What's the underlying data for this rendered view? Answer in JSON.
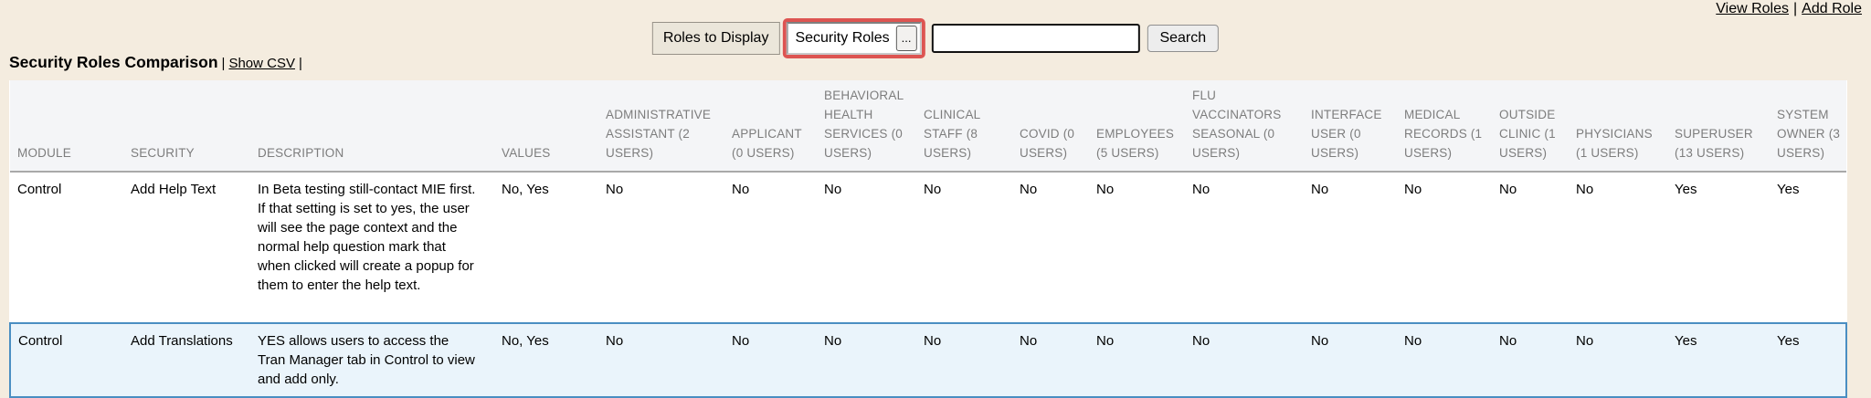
{
  "top_links": {
    "view_roles": "View Roles",
    "separator": "|",
    "add_role": "Add Role"
  },
  "controls": {
    "roles_to_display_label": "Roles to Display",
    "roles_picker_value": "Security Roles",
    "roles_picker_button_label": "...",
    "search_value": "",
    "search_button_label": "Search"
  },
  "title_line": {
    "title": "Security Roles Comparison",
    "sep1": "|",
    "show_csv_link": "Show CSV",
    "sep2": "|"
  },
  "colors": {
    "page_background": "#f4ecdf",
    "highlight_border_red": "#dd5451",
    "table_header_background": "#f4f5f7",
    "table_header_text": "#7d7d7d",
    "highlighted_row_background": "#eaf4fb",
    "highlighted_row_border_blue": "#4a8ec2"
  },
  "table": {
    "columns": [
      {
        "id": "module",
        "label": "MODULE"
      },
      {
        "id": "security",
        "label": "SECURITY"
      },
      {
        "id": "description",
        "label": "DESCRIPTION"
      },
      {
        "id": "values",
        "label": "VALUES"
      },
      {
        "id": "administrative-assistant",
        "label": "ADMINISTRATIVE ASSISTANT (2 USERS)"
      },
      {
        "id": "applicant",
        "label": "APPLICANT (0 USERS)"
      },
      {
        "id": "behavioral-health-services",
        "label": "BEHAVIORAL HEALTH SERVICES (0 USERS)"
      },
      {
        "id": "clinical-staff",
        "label": "CLINICAL STAFF (8 USERS)"
      },
      {
        "id": "covid",
        "label": "COVID (0 USERS)"
      },
      {
        "id": "employees",
        "label": "EMPLOYEES (5 USERS)"
      },
      {
        "id": "flu-vaccinators-seasonal",
        "label": "FLU VACCINATORS SEASONAL (0 USERS)"
      },
      {
        "id": "interface-user",
        "label": "INTERFACE USER (0 USERS)"
      },
      {
        "id": "medical-records",
        "label": "MEDICAL RECORDS (1 USERS)"
      },
      {
        "id": "outside-clinic",
        "label": "OUTSIDE CLINIC (1 USERS)"
      },
      {
        "id": "physicians",
        "label": "PHYSICIANS (1 USERS)"
      },
      {
        "id": "superuser",
        "label": "SUPERUSER (13 USERS)"
      },
      {
        "id": "system-owner",
        "label": "SYSTEM OWNER (3 USERS)"
      }
    ],
    "rows": [
      {
        "highlighted": false,
        "cells": [
          "Control",
          "Add Help Text",
          "In Beta testing still-contact MIE first. If that setting is set to yes, the user will see the page context and the normal help question mark that when clicked will create a popup for them to enter the help text.",
          "No, Yes",
          "No",
          "No",
          "No",
          "No",
          "No",
          "No",
          "No",
          "No",
          "No",
          "No",
          "No",
          "Yes",
          "Yes"
        ]
      },
      {
        "highlighted": true,
        "cells": [
          "Control",
          "Add Translations",
          "YES allows users to access the Tran Manager tab in Control to view and add only.",
          "No, Yes",
          "No",
          "No",
          "No",
          "No",
          "No",
          "No",
          "No",
          "No",
          "No",
          "No",
          "No",
          "Yes",
          "Yes"
        ]
      }
    ]
  }
}
